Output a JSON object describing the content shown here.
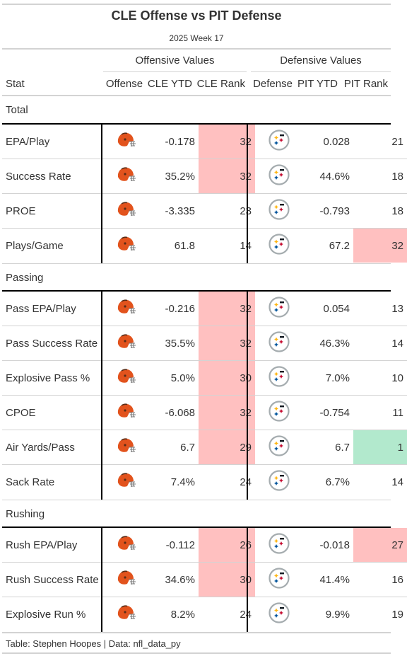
{
  "title": "CLE Offense vs PIT Defense",
  "subtitle": "2025 Week 17",
  "spanners": {
    "offense": "Offensive Values",
    "defense": "Defensive Values"
  },
  "columns": [
    "Stat",
    "Offense",
    "CLE YTD",
    "CLE Rank",
    "Defense",
    "PIT YTD",
    "PIT Rank"
  ],
  "colors": {
    "bad": "#ffc0c0",
    "good": "#b2e9cd",
    "browns_orange": "#e2531d",
    "steelers_gold": "#ffb612"
  },
  "icons": {
    "offense": "browns-helmet-icon",
    "defense": "steelers-logo-icon"
  },
  "groups": [
    {
      "label": "Total",
      "rows": [
        {
          "stat": "EPA/Play",
          "cle_ytd": "-0.178",
          "cle_rank": "32",
          "pit_ytd": "0.028",
          "pit_rank": "21",
          "cle_flag": "bad",
          "pit_flag": ""
        },
        {
          "stat": "Success Rate",
          "cle_ytd": "35.2%",
          "cle_rank": "32",
          "pit_ytd": "44.6%",
          "pit_rank": "18",
          "cle_flag": "bad",
          "pit_flag": ""
        },
        {
          "stat": "PROE",
          "cle_ytd": "-3.335",
          "cle_rank": "23",
          "pit_ytd": "-0.793",
          "pit_rank": "18",
          "cle_flag": "",
          "pit_flag": ""
        },
        {
          "stat": "Plays/Game",
          "cle_ytd": "61.8",
          "cle_rank": "14",
          "pit_ytd": "67.2",
          "pit_rank": "32",
          "cle_flag": "",
          "pit_flag": "bad"
        }
      ]
    },
    {
      "label": "Passing",
      "rows": [
        {
          "stat": "Pass EPA/Play",
          "cle_ytd": "-0.216",
          "cle_rank": "32",
          "pit_ytd": "0.054",
          "pit_rank": "13",
          "cle_flag": "bad",
          "pit_flag": ""
        },
        {
          "stat": "Pass Success Rate",
          "cle_ytd": "35.5%",
          "cle_rank": "32",
          "pit_ytd": "46.3%",
          "pit_rank": "14",
          "cle_flag": "bad",
          "pit_flag": ""
        },
        {
          "stat": "Explosive Pass %",
          "cle_ytd": "5.0%",
          "cle_rank": "30",
          "pit_ytd": "7.0%",
          "pit_rank": "10",
          "cle_flag": "bad",
          "pit_flag": ""
        },
        {
          "stat": "CPOE",
          "cle_ytd": "-6.068",
          "cle_rank": "32",
          "pit_ytd": "-0.754",
          "pit_rank": "11",
          "cle_flag": "bad",
          "pit_flag": ""
        },
        {
          "stat": "Air Yards/Pass",
          "cle_ytd": "6.7",
          "cle_rank": "29",
          "pit_ytd": "6.7",
          "pit_rank": "1",
          "cle_flag": "bad",
          "pit_flag": "good"
        },
        {
          "stat": "Sack Rate",
          "cle_ytd": "7.4%",
          "cle_rank": "24",
          "pit_ytd": "6.7%",
          "pit_rank": "14",
          "cle_flag": "",
          "pit_flag": ""
        }
      ]
    },
    {
      "label": "Rushing",
      "rows": [
        {
          "stat": "Rush EPA/Play",
          "cle_ytd": "-0.112",
          "cle_rank": "26",
          "pit_ytd": "-0.018",
          "pit_rank": "27",
          "cle_flag": "bad",
          "pit_flag": "bad"
        },
        {
          "stat": "Rush Success Rate",
          "cle_ytd": "34.6%",
          "cle_rank": "30",
          "pit_ytd": "41.4%",
          "pit_rank": "16",
          "cle_flag": "bad",
          "pit_flag": ""
        },
        {
          "stat": "Explosive Run %",
          "cle_ytd": "8.2%",
          "cle_rank": "24",
          "pit_ytd": "9.9%",
          "pit_rank": "19",
          "cle_flag": "",
          "pit_flag": ""
        }
      ]
    }
  ],
  "footer": "Table: Stephen Hoopes | Data: nfl_data_py"
}
